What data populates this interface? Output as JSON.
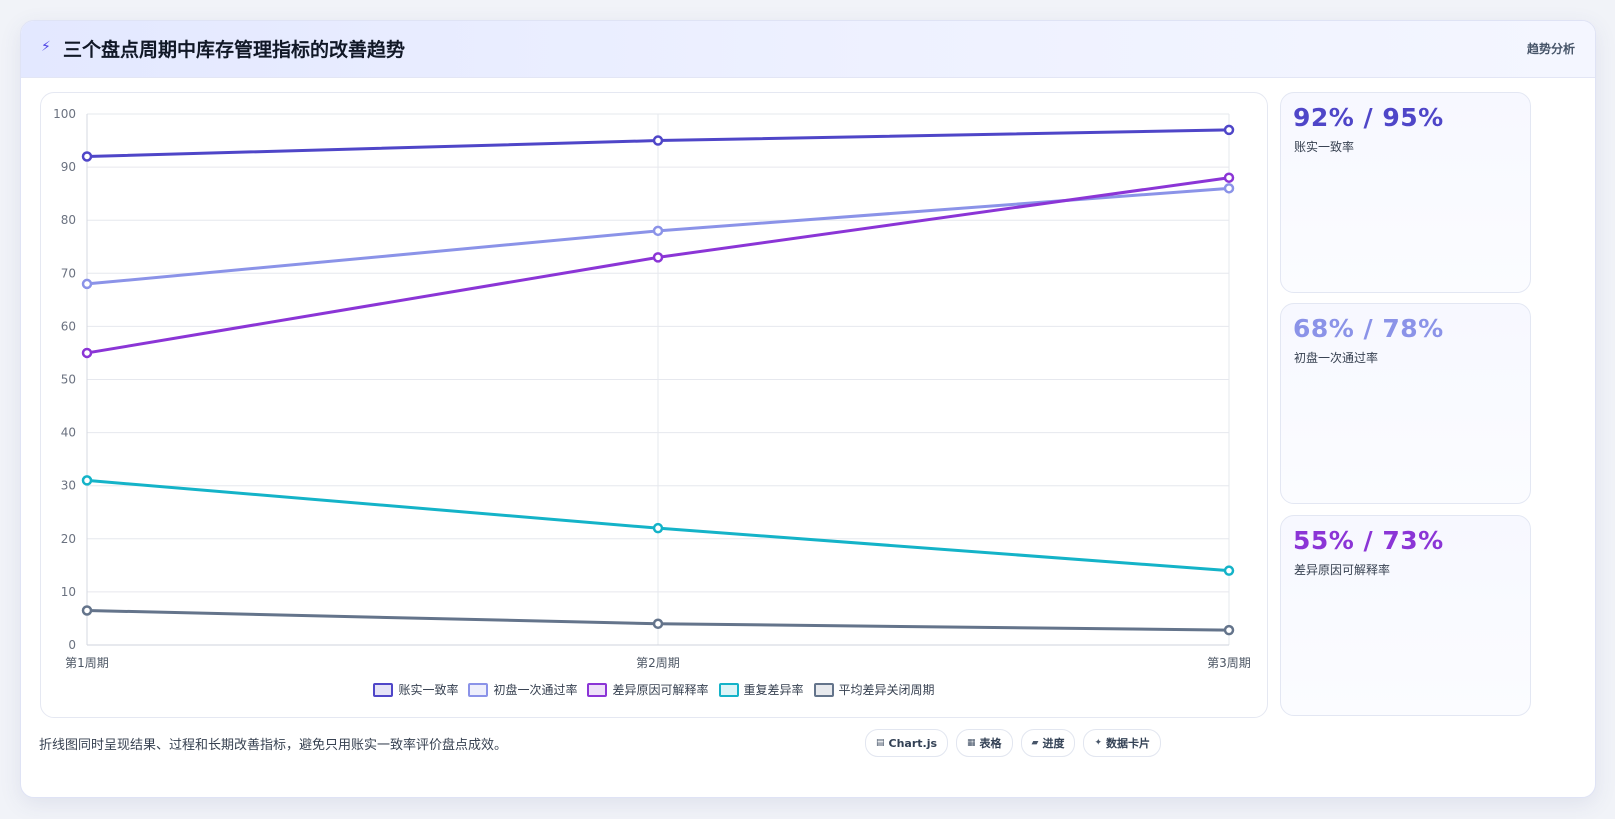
{
  "header": {
    "icon": "lightning-icon",
    "title": "三个盘点周期中库存管理指标的改善趋势",
    "tag": "趋势分析"
  },
  "chart_data": {
    "type": "line",
    "categories": [
      "第1周期",
      "第2周期",
      "第3周期"
    ],
    "ylim": [
      0,
      100
    ],
    "yticks": [
      0,
      10,
      20,
      30,
      40,
      50,
      60,
      70,
      80,
      90,
      100
    ],
    "grid": true,
    "legend_position": "bottom-center",
    "series": [
      {
        "name": "账实一致率",
        "values": [
          92,
          95,
          97
        ],
        "color": "#4f46c8"
      },
      {
        "name": "初盘一次通过率",
        "values": [
          68,
          78,
          86
        ],
        "color": "#8b93e8"
      },
      {
        "name": "差异原因可解释率",
        "values": [
          55,
          73,
          88
        ],
        "color": "#8b35d6"
      },
      {
        "name": "重复差异率",
        "values": [
          31,
          22,
          14
        ],
        "color": "#14b3c8"
      },
      {
        "name": "平均差异关闭周期",
        "values": [
          6.5,
          4,
          2.8
        ],
        "color": "#64748b"
      }
    ]
  },
  "stats": [
    {
      "value": "92% / 95%",
      "label": "账实一致率",
      "color": "#4f46c8"
    },
    {
      "value": "68% / 78%",
      "label": "初盘一次通过率",
      "color": "#8b93e8"
    },
    {
      "value": "55% / 73%",
      "label": "差异原因可解释率",
      "color": "#8b35d6"
    }
  ],
  "footnote": "折线图同时呈现结果、过程和长期改善指标，避免只用账实一致率评价盘点成效。",
  "chips": [
    {
      "icon": "chart-icon",
      "glyph": "▤",
      "label": "Chart.js"
    },
    {
      "icon": "table-icon",
      "glyph": "▦",
      "label": "表格"
    },
    {
      "icon": "progress-icon",
      "glyph": "▰",
      "label": "进度"
    },
    {
      "icon": "sparkle-icon",
      "glyph": "✦",
      "label": "数据卡片"
    }
  ]
}
